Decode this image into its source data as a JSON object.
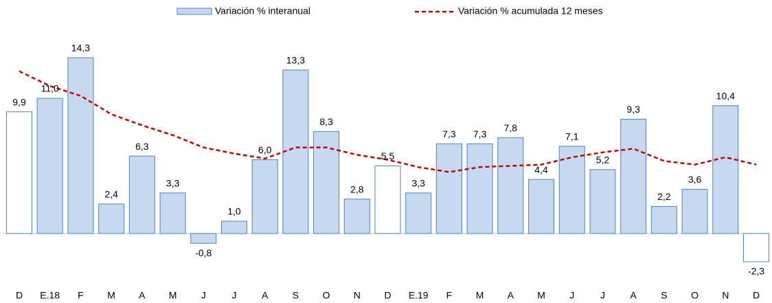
{
  "chart_data": {
    "type": "bar-line",
    "categories": [
      "D",
      "E.18",
      "F",
      "M",
      "A",
      "M",
      "J",
      "J",
      "A",
      "S",
      "O",
      "N",
      "D",
      "E.19",
      "F",
      "M",
      "A",
      "M",
      "J",
      "J",
      "A",
      "S",
      "O",
      "N",
      "D"
    ],
    "series": [
      {
        "name": "Variación % interanual",
        "type": "bar",
        "color": "#c6d9f1",
        "stroke": "#4f81bd",
        "values": [
          9.9,
          11.0,
          14.3,
          2.4,
          6.3,
          3.3,
          -0.8,
          1.0,
          6.0,
          13.3,
          8.3,
          2.8,
          5.5,
          3.3,
          7.3,
          7.3,
          7.8,
          4.4,
          7.1,
          5.2,
          9.3,
          2.2,
          3.6,
          10.4,
          -2.3
        ],
        "value_labels": [
          "9,9",
          "11,0",
          "14,3",
          "2,4",
          "6,3",
          "3,3",
          "-0,8",
          "1,0",
          "6,0",
          "13,3",
          "8,3",
          "2,8",
          "5,5",
          "3,3",
          "7,3",
          "7,3",
          "7,8",
          "4,4",
          "7,1",
          "5,2",
          "9,3",
          "2,2",
          "3,6",
          "10,4",
          "-2,3"
        ],
        "point_colors": [
          "#ffffff",
          "#c6d9f1",
          "#c6d9f1",
          "#c6d9f1",
          "#c6d9f1",
          "#c6d9f1",
          "#c6d9f1",
          "#c6d9f1",
          "#c6d9f1",
          "#c6d9f1",
          "#c6d9f1",
          "#c6d9f1",
          "#ffffff",
          "#c6d9f1",
          "#c6d9f1",
          "#c6d9f1",
          "#c6d9f1",
          "#c6d9f1",
          "#c6d9f1",
          "#c6d9f1",
          "#c6d9f1",
          "#c6d9f1",
          "#c6d9f1",
          "#c6d9f1",
          "#ffffff"
        ]
      },
      {
        "name": "Variación % acumulada 12 meses",
        "type": "line",
        "color": "#c00000",
        "dashed": true,
        "values": [
          13.2,
          12.0,
          11.2,
          9.7,
          8.8,
          8.0,
          7.0,
          6.5,
          6.1,
          7.0,
          7.0,
          6.4,
          6.0,
          5.4,
          5.0,
          5.4,
          5.5,
          5.6,
          6.2,
          6.6,
          6.9,
          5.9,
          5.6,
          6.2,
          5.6
        ]
      }
    ]
  }
}
